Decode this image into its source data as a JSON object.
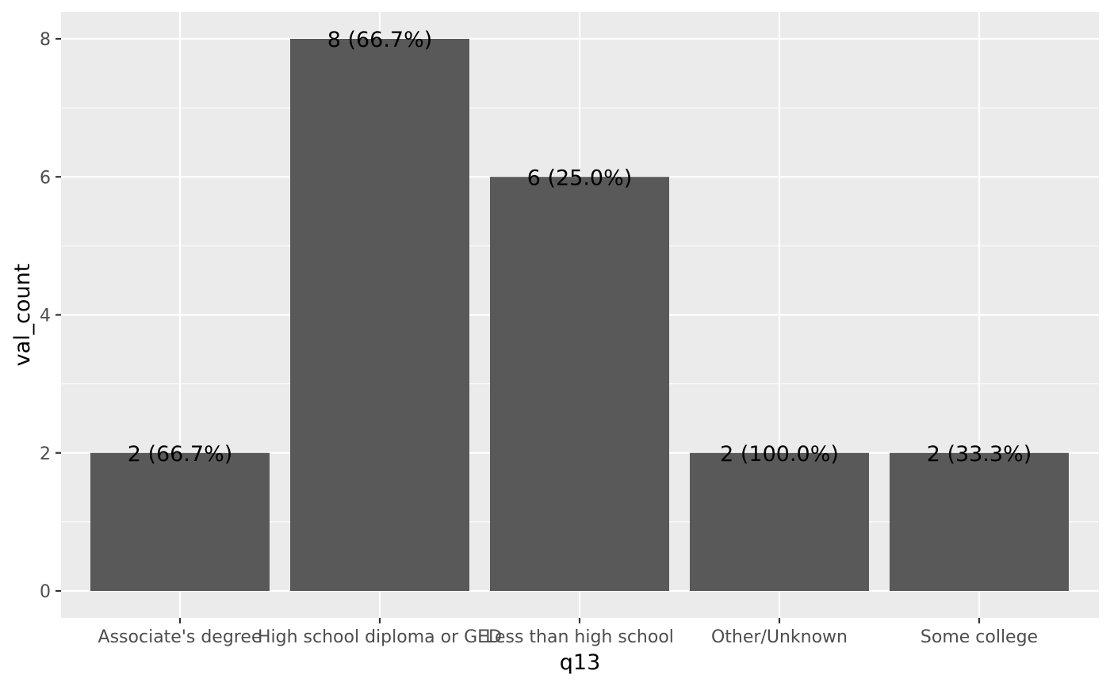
{
  "chart_data": {
    "type": "bar",
    "title": "",
    "xlabel": "q13",
    "ylabel": "val_count",
    "categories": [
      "Associate's degree",
      "High school diploma or GED",
      "Less than high school",
      "Other/Unknown",
      "Some college"
    ],
    "values": [
      2,
      8,
      6,
      2,
      2
    ],
    "data_labels": [
      "2 (66.7%)",
      "8 (66.7%)",
      "6 (25.0%)",
      "2 (100.0%)",
      "2 (33.3%)"
    ],
    "ylim": [
      0,
      8.4
    ],
    "yticks": [
      0,
      2,
      4,
      6,
      8
    ],
    "grid": true,
    "legend": "none",
    "colors": {
      "panel": "#ebebeb",
      "bar": "#595959",
      "grid_major": "#ffffff",
      "grid_minor": "#ffffff",
      "tick_text": "#4d4d4d",
      "tick_mark": "#333333"
    }
  }
}
